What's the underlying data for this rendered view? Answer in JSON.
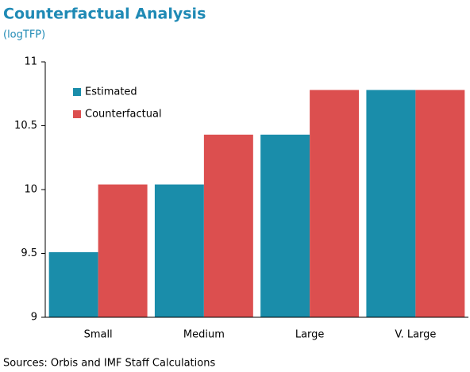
{
  "chart_data": {
    "type": "bar",
    "title": "Counterfactual Analysis",
    "subtitle": "(logTFP)",
    "note": "Sources: Orbis and IMF Staff Calculations",
    "categories": [
      "Small",
      "Medium",
      "Large",
      "V. Large"
    ],
    "series": [
      {
        "name": "Estimated",
        "color": "#1a8daa",
        "values": [
          9.51,
          10.04,
          10.43,
          10.78
        ]
      },
      {
        "name": "Counterfactual",
        "color": "#dc4f4f",
        "values": [
          10.04,
          10.43,
          10.78,
          10.78
        ]
      }
    ],
    "ylim": [
      9,
      11
    ],
    "yticks": [
      9,
      9.5,
      10,
      10.5,
      11
    ],
    "grid": false,
    "legend": "upper left"
  }
}
